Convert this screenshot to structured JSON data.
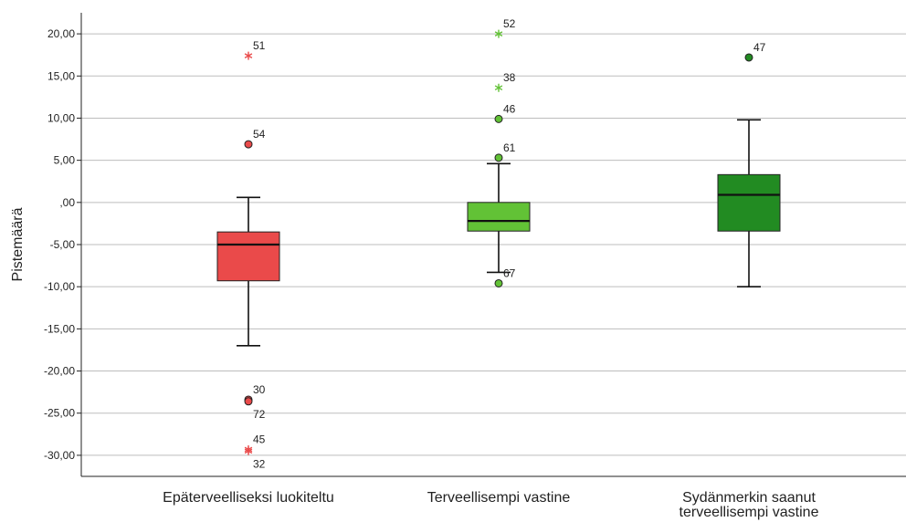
{
  "chart_data": {
    "type": "boxplot",
    "ylabel": "Pistemäärä",
    "ylim": [
      -32.5,
      22.5
    ],
    "yticks": [
      20,
      15,
      10,
      5,
      0,
      -5,
      -10,
      -15,
      -20,
      -25,
      -30
    ],
    "ytick_labels": [
      "20,00",
      "15,00",
      "10,00",
      "5,00",
      ",00",
      "-5,00",
      "-10,00",
      "-15,00",
      "-20,00",
      "-25,00",
      "-30,00"
    ],
    "grid": true,
    "categories": [
      {
        "label_lines": [
          "Epäterveelliseksi luokiteltu"
        ],
        "color": "#ea4a4a",
        "box": {
          "whisker_low": -17.0,
          "q1": -9.3,
          "median": -5.0,
          "q3": -3.5,
          "whisker_high": 0.6
        },
        "outliers": [
          {
            "id": "51",
            "value": 17.4,
            "type": "extreme"
          },
          {
            "id": "54",
            "value": 6.9,
            "type": "outlier"
          },
          {
            "id": "30",
            "value": -23.4,
            "type": "outlier"
          },
          {
            "id": "72",
            "value": -23.6,
            "type": "outlier"
          },
          {
            "id": "45",
            "value": -29.3,
            "type": "extreme"
          },
          {
            "id": "32",
            "value": -29.5,
            "type": "extreme"
          }
        ]
      },
      {
        "label_lines": [
          "Terveellisempi vastine"
        ],
        "color": "#62c236",
        "box": {
          "whisker_low": -8.3,
          "q1": -3.4,
          "median": -2.2,
          "q3": 0.0,
          "whisker_high": 4.6
        },
        "outliers": [
          {
            "id": "52",
            "value": 20.0,
            "type": "extreme"
          },
          {
            "id": "38",
            "value": 13.6,
            "type": "extreme"
          },
          {
            "id": "46",
            "value": 9.9,
            "type": "outlier"
          },
          {
            "id": "61",
            "value": 5.3,
            "type": "outlier"
          },
          {
            "id": "67",
            "value": -9.6,
            "type": "outlier"
          }
        ]
      },
      {
        "label_lines": [
          "Sydänmerkin saanut",
          "terveellisempi vastine"
        ],
        "color": "#228b22",
        "box": {
          "whisker_low": -10.0,
          "q1": -3.4,
          "median": 0.9,
          "q3": 3.3,
          "whisker_high": 9.8
        },
        "outliers": [
          {
            "id": "47",
            "value": 17.2,
            "type": "outlier"
          }
        ]
      }
    ]
  }
}
